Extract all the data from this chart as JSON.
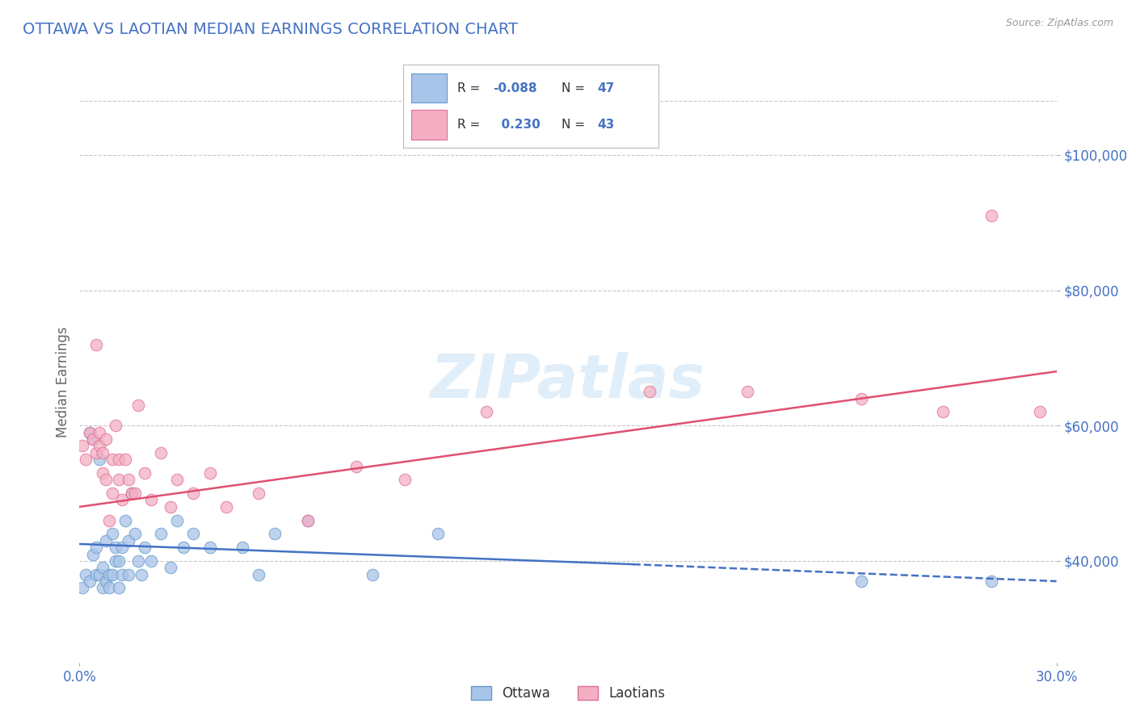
{
  "title": "OTTAWA VS LAOTIAN MEDIAN EARNINGS CORRELATION CHART",
  "source": "Source: ZipAtlas.com",
  "ylabel": "Median Earnings",
  "xlim": [
    0.0,
    0.3
  ],
  "ylim": [
    25000,
    108000
  ],
  "ytick_values": [
    40000,
    60000,
    80000,
    100000
  ],
  "ytick_labels": [
    "$40,000",
    "$60,000",
    "$80,000",
    "$100,000"
  ],
  "background_color": "#ffffff",
  "grid_color": "#c8c8c8",
  "title_color": "#4472c4",
  "watermark_text": "ZIPatlas",
  "legend_ottawa_r": "-0.088",
  "legend_ottawa_n": "47",
  "legend_laotian_r": "0.230",
  "legend_laotian_n": "43",
  "ottawa_color": "#a8c4e8",
  "ottawa_edge": "#6699cc",
  "laotian_color": "#f4afc4",
  "laotian_edge": "#e07090",
  "ottawa_line_color": "#4472c4",
  "laotian_line_color": "#e05070",
  "ottawa_scatter_x": [
    0.001,
    0.002,
    0.003,
    0.003,
    0.004,
    0.004,
    0.005,
    0.005,
    0.006,
    0.006,
    0.007,
    0.007,
    0.008,
    0.008,
    0.009,
    0.009,
    0.01,
    0.01,
    0.011,
    0.011,
    0.012,
    0.012,
    0.013,
    0.013,
    0.014,
    0.015,
    0.015,
    0.016,
    0.017,
    0.018,
    0.019,
    0.02,
    0.022,
    0.025,
    0.028,
    0.03,
    0.032,
    0.035,
    0.04,
    0.05,
    0.055,
    0.06,
    0.07,
    0.09,
    0.11,
    0.24,
    0.28
  ],
  "ottawa_scatter_y": [
    36000,
    38000,
    37000,
    59000,
    58000,
    41000,
    38000,
    42000,
    55000,
    38000,
    36000,
    39000,
    43000,
    37000,
    38000,
    36000,
    44000,
    38000,
    40000,
    42000,
    36000,
    40000,
    42000,
    38000,
    46000,
    43000,
    38000,
    50000,
    44000,
    40000,
    38000,
    42000,
    40000,
    44000,
    39000,
    46000,
    42000,
    44000,
    42000,
    42000,
    38000,
    44000,
    46000,
    38000,
    44000,
    37000,
    37000
  ],
  "laotian_scatter_x": [
    0.001,
    0.002,
    0.003,
    0.004,
    0.005,
    0.005,
    0.006,
    0.006,
    0.007,
    0.007,
    0.008,
    0.008,
    0.009,
    0.01,
    0.01,
    0.011,
    0.012,
    0.012,
    0.013,
    0.014,
    0.015,
    0.016,
    0.017,
    0.018,
    0.02,
    0.022,
    0.025,
    0.028,
    0.03,
    0.035,
    0.04,
    0.045,
    0.055,
    0.07,
    0.085,
    0.1,
    0.125,
    0.175,
    0.205,
    0.24,
    0.265,
    0.28,
    0.295
  ],
  "laotian_scatter_y": [
    57000,
    55000,
    59000,
    58000,
    72000,
    56000,
    57000,
    59000,
    56000,
    53000,
    52000,
    58000,
    46000,
    55000,
    50000,
    60000,
    52000,
    55000,
    49000,
    55000,
    52000,
    50000,
    50000,
    63000,
    53000,
    49000,
    56000,
    48000,
    52000,
    50000,
    53000,
    48000,
    50000,
    46000,
    54000,
    52000,
    62000,
    65000,
    65000,
    64000,
    62000,
    91000,
    62000
  ],
  "ottawa_line_x": [
    0.0,
    0.17,
    0.3
  ],
  "ottawa_line_y": [
    42500,
    39500,
    37000
  ],
  "ottawa_dashed_from": 0.17,
  "laotian_line_x": [
    0.0,
    0.3
  ],
  "laotian_line_y": [
    48000,
    68000
  ]
}
